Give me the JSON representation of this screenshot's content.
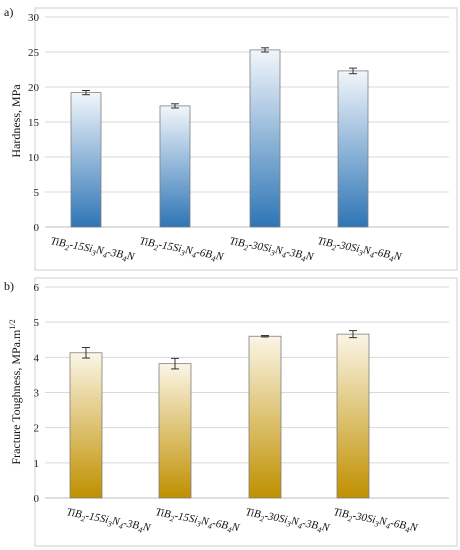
{
  "chart_data": [
    {
      "panel_label": "a)",
      "type": "bar",
      "ylabel": "Hardness, MPa",
      "ylim": [
        0,
        30
      ],
      "yticks": [
        0,
        5,
        10,
        15,
        20,
        25,
        30
      ],
      "categories": [
        {
          "base": "TiB",
          "sub1": "2",
          "mid1": "-15Si",
          "sub2": "3",
          "mid2": "N",
          "sub3": "4",
          "mid3": "-3B",
          "sub4": "4",
          "tail": "N"
        },
        {
          "base": "TiB",
          "sub1": "2",
          "mid1": "-15Si",
          "sub2": "3",
          "mid2": "N",
          "sub3": "4",
          "mid3": "-6B",
          "sub4": "4",
          "tail": "N"
        },
        {
          "base": "TiB",
          "sub1": "2",
          "mid1": "-30Si",
          "sub2": "3",
          "mid2": "N",
          "sub3": "4",
          "mid3": "-3B",
          "sub4": "4",
          "tail": "N"
        },
        {
          "base": "TiB",
          "sub1": "2",
          "mid1": "-30Si",
          "sub2": "3",
          "mid2": "N",
          "sub3": "4",
          "mid3": "-6B",
          "sub4": "4",
          "tail": "N"
        }
      ],
      "values": [
        19.2,
        17.3,
        25.3,
        22.3
      ],
      "errors": [
        0.3,
        0.3,
        0.3,
        0.4
      ],
      "colors": {
        "top": "#f2f6fb",
        "bottom": "#2e75b6"
      }
    },
    {
      "panel_label": "b)",
      "type": "bar",
      "ylabel": "Fracture Toughness, MPa.m",
      "ylabel_sup": "1/2",
      "ylim": [
        0,
        6
      ],
      "yticks": [
        0,
        1,
        2,
        3,
        4,
        5,
        6
      ],
      "categories": [
        {
          "base": "TiB",
          "sub1": "2",
          "mid1": "-15Si",
          "sub2": "3",
          "mid2": "N",
          "sub3": "4",
          "mid3": "-3B",
          "sub4": "4",
          "tail": "N"
        },
        {
          "base": "TiB",
          "sub1": "2",
          "mid1": "-15Si",
          "sub2": "3",
          "mid2": "N",
          "sub3": "4",
          "mid3": "-6B",
          "sub4": "4",
          "tail": "N"
        },
        {
          "base": "TiB",
          "sub1": "2",
          "mid1": "-30Si",
          "sub2": "3",
          "mid2": "N",
          "sub3": "4",
          "mid3": "-3B",
          "sub4": "4",
          "tail": "N"
        },
        {
          "base": "TiB",
          "sub1": "2",
          "mid1": "-30Si",
          "sub2": "3",
          "mid2": "N",
          "sub3": "4",
          "mid3": "-6B",
          "sub4": "4",
          "tail": "N"
        }
      ],
      "values": [
        4.13,
        3.82,
        4.6,
        4.66
      ],
      "errors": [
        0.15,
        0.15,
        0.02,
        0.1
      ],
      "colors": {
        "top": "#fbf5e6",
        "bottom": "#c09000"
      }
    }
  ]
}
